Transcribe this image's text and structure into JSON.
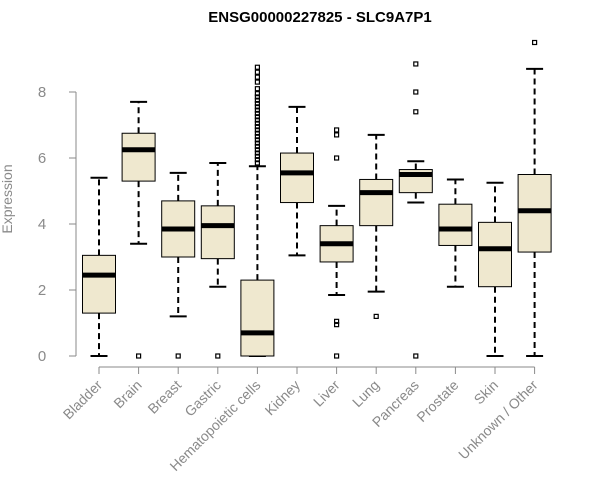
{
  "chart_data": {
    "type": "boxplot",
    "title": "ENSG00000227825 - SLC9A7P1",
    "xlabel": "",
    "ylabel": "Expression",
    "ylim": [
      0,
      9.6
    ],
    "yticks": [
      0,
      2,
      4,
      6,
      8
    ],
    "categories": [
      "Bladder",
      "Brain",
      "Breast",
      "Gastric",
      "Hematopoietic cells",
      "Kidney",
      "Liver",
      "Lung",
      "Pancreas",
      "Prostate",
      "Skin",
      "Unknown / Other"
    ],
    "boxes": [
      {
        "category": "Bladder",
        "whisker_low": 0.0,
        "q1": 1.3,
        "median": 2.45,
        "q3": 3.05,
        "whisker_high": 5.4,
        "outliers": []
      },
      {
        "category": "Brain",
        "whisker_low": 3.4,
        "q1": 5.3,
        "median": 6.25,
        "q3": 6.75,
        "whisker_high": 7.7,
        "outliers": [
          0.0
        ]
      },
      {
        "category": "Breast",
        "whisker_low": 1.2,
        "q1": 3.0,
        "median": 3.85,
        "q3": 4.7,
        "whisker_high": 5.55,
        "outliers": [
          0.0
        ]
      },
      {
        "category": "Gastric",
        "whisker_low": 2.1,
        "q1": 2.95,
        "median": 3.95,
        "q3": 4.55,
        "whisker_high": 5.85,
        "outliers": [
          0.0
        ]
      },
      {
        "category": "Hematopoietic cells",
        "whisker_low": 0.0,
        "q1": 0.0,
        "median": 0.7,
        "q3": 2.3,
        "whisker_high": 5.75,
        "outliers": [
          5.85,
          5.95,
          6.05,
          6.15,
          6.25,
          6.35,
          6.45,
          6.55,
          6.65,
          6.75,
          6.85,
          6.95,
          7.05,
          7.15,
          7.25,
          7.35,
          7.45,
          7.55,
          7.65,
          7.75,
          7.85,
          7.95,
          8.1,
          8.3,
          8.45,
          8.6,
          8.75
        ]
      },
      {
        "category": "Kidney",
        "whisker_low": 3.05,
        "q1": 4.65,
        "median": 5.55,
        "q3": 6.15,
        "whisker_high": 7.55,
        "outliers": []
      },
      {
        "category": "Liver",
        "whisker_low": 1.85,
        "q1": 2.85,
        "median": 3.4,
        "q3": 3.95,
        "whisker_high": 4.55,
        "outliers": [
          0.0,
          0.95,
          1.05,
          6.0,
          6.7,
          6.85
        ]
      },
      {
        "category": "Lung",
        "whisker_low": 1.95,
        "q1": 3.95,
        "median": 4.95,
        "q3": 5.35,
        "whisker_high": 6.7,
        "outliers": [
          1.2
        ]
      },
      {
        "category": "Pancreas",
        "whisker_low": 4.65,
        "q1": 4.95,
        "median": 5.5,
        "q3": 5.65,
        "whisker_high": 5.9,
        "outliers": [
          0.0,
          7.4,
          8.0,
          8.85
        ]
      },
      {
        "category": "Prostate",
        "whisker_low": 2.1,
        "q1": 3.35,
        "median": 3.85,
        "q3": 4.6,
        "whisker_high": 5.35,
        "outliers": []
      },
      {
        "category": "Skin",
        "whisker_low": 0.0,
        "q1": 2.1,
        "median": 3.25,
        "q3": 4.05,
        "whisker_high": 5.25,
        "outliers": []
      },
      {
        "category": "Unknown / Other",
        "whisker_low": 0.0,
        "q1": 3.15,
        "median": 4.4,
        "q3": 5.5,
        "whisker_high": 8.7,
        "outliers": [
          9.5
        ]
      }
    ],
    "colors": {
      "box_fill": "#efe8cf",
      "box_stroke": "#000000",
      "axis": "#8a8a8a"
    },
    "grid": false,
    "legend": "none"
  }
}
